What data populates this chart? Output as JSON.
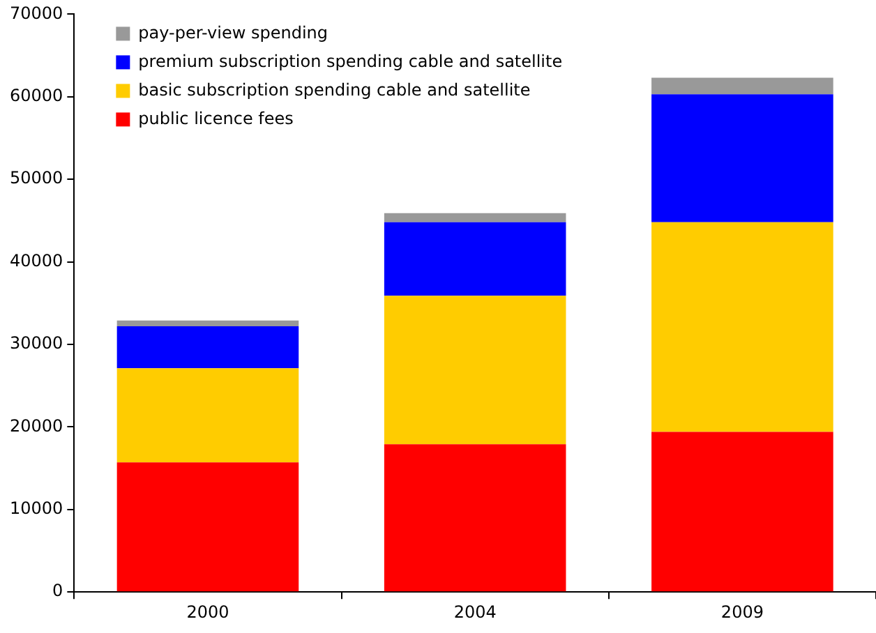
{
  "chart_data": {
    "type": "bar",
    "stacked": true,
    "categories": [
      "2000",
      "2004",
      "2009"
    ],
    "series": [
      {
        "name": "public licence fees",
        "color": "#ff0000",
        "values": [
          15700,
          17900,
          19400
        ]
      },
      {
        "name": "basic subscription spending cable and satellite",
        "color": "#ffcc00",
        "values": [
          11400,
          18000,
          25400
        ]
      },
      {
        "name": "premium subscription spending cable and satellite",
        "color": "#0000ff",
        "values": [
          5100,
          8900,
          15500
        ]
      },
      {
        "name": "pay-per-view spending",
        "color": "#999999",
        "values": [
          700,
          1100,
          2000
        ]
      }
    ],
    "ylim": [
      0,
      70000
    ],
    "yticks": [
      0,
      10000,
      20000,
      30000,
      40000,
      50000,
      60000,
      70000
    ],
    "grid": false,
    "legend": "top left"
  }
}
